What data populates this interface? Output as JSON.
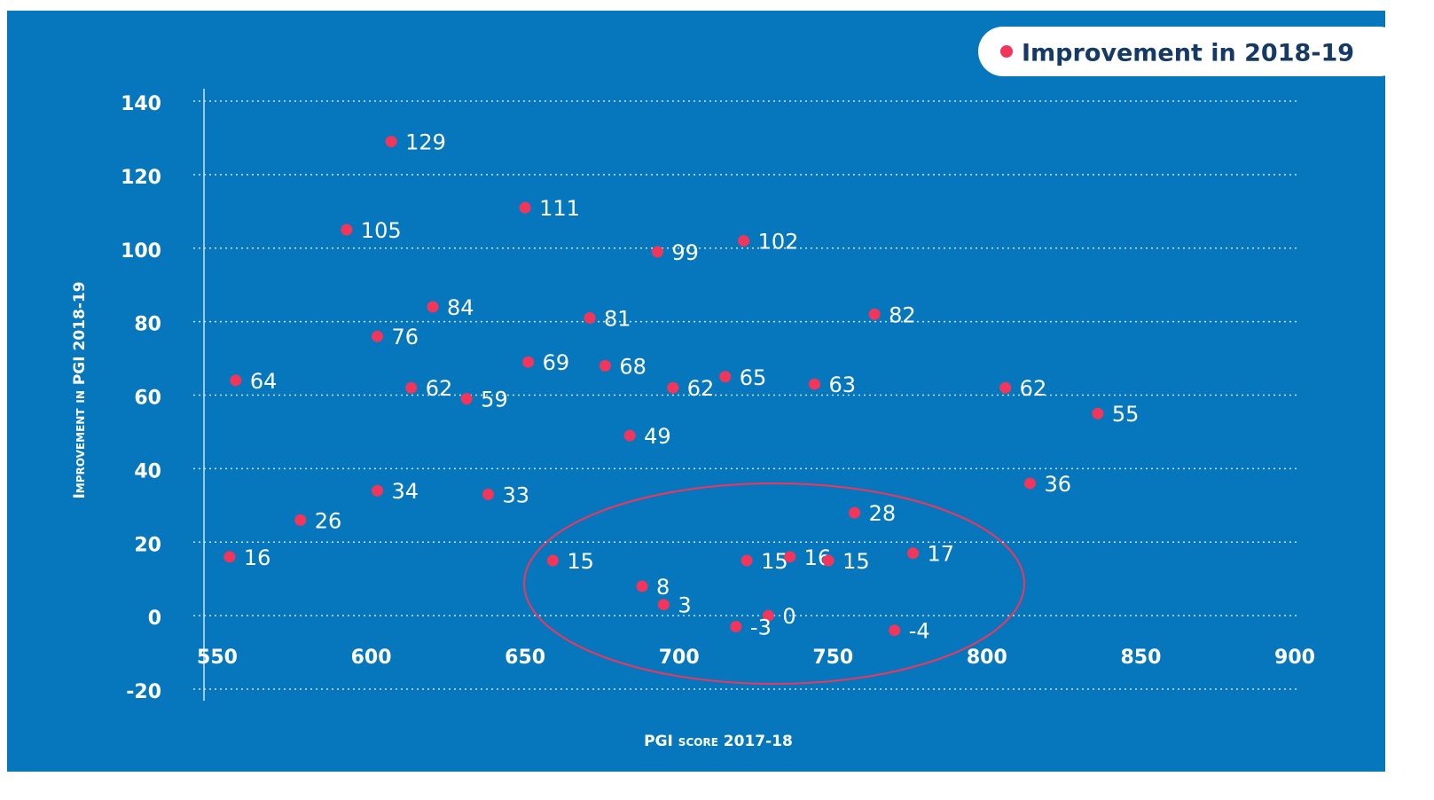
{
  "chart_data": {
    "type": "scatter",
    "xlabel": "PGI score 2017-18",
    "ylabel": "Improvement in PGI 2018-19",
    "xlim": [
      550,
      900
    ],
    "xticks": [
      550,
      600,
      650,
      700,
      750,
      800,
      850,
      900
    ],
    "ylim": [
      -20,
      140
    ],
    "yticks": [
      -20,
      0,
      20,
      40,
      60,
      80,
      100,
      120,
      140
    ],
    "grid": true,
    "legend": "top-right",
    "series": [
      {
        "name": "Improvement in 2018-19",
        "color": "#f2355b",
        "x": [
          606.5,
          592,
          650,
          721,
          693,
          620,
          671,
          602,
          763.5,
          556,
          613,
          651,
          676,
          715,
          744,
          806,
          631,
          698,
          836,
          684,
          602,
          638,
          814,
          577,
          757,
          554,
          659,
          688,
          695,
          722,
          729,
          736,
          748.5,
          776,
          718.5,
          770
        ],
        "values": [
          129,
          105,
          111,
          102,
          99,
          84,
          81,
          76,
          82,
          64,
          62,
          69,
          68,
          65,
          63,
          62,
          59,
          62,
          55,
          49,
          34,
          33,
          36,
          26,
          28,
          16,
          15,
          8,
          3,
          15,
          0,
          16,
          15,
          17,
          -3,
          -4
        ]
      }
    ]
  }
}
